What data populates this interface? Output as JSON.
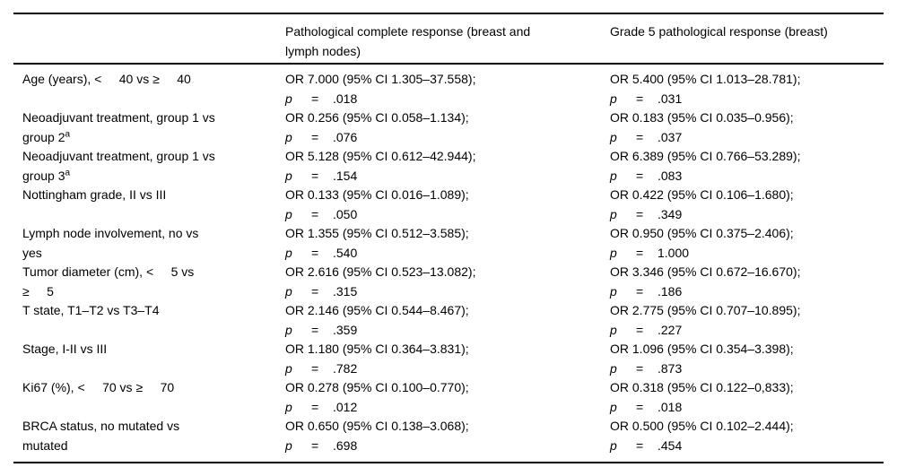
{
  "table": {
    "p_symbol": "p",
    "eq_symbol": "=",
    "columns": [
      {
        "label": ""
      },
      {
        "label": "Pathological complete response (breast and lymph nodes)"
      },
      {
        "label": "Grade 5 pathological response (breast)"
      }
    ],
    "rows": [
      {
        "label_lines": [
          "Age (years), <     40 vs ≥     40"
        ],
        "pcr": {
          "or": "OR 7.000 (95% CI 1.305–37.558);",
          "p": ".018"
        },
        "grade5": {
          "or": "OR 5.400 (95% CI 1.013–28.781);",
          "p": ".031"
        }
      },
      {
        "label_lines": [
          "Neoadjuvant treatment, group 1 vs",
          "group 2^a"
        ],
        "pcr": {
          "or": "OR 0.256 (95% CI 0.058–1.134);",
          "p": ".076"
        },
        "grade5": {
          "or": "OR 0.183 (95% CI 0.035–0.956);",
          "p": ".037"
        }
      },
      {
        "label_lines": [
          "Neoadjuvant treatment, group 1 vs",
          "group 3^a"
        ],
        "pcr": {
          "or": "OR 5.128 (95% CI 0.612–42.944);",
          "p": ".154"
        },
        "grade5": {
          "or": "OR 6.389 (95% CI 0.766–53.289);",
          "p": ".083"
        }
      },
      {
        "label_lines": [
          "Nottingham grade, II vs III"
        ],
        "pcr": {
          "or": "OR 0.133 (95% CI 0.016–1.089);",
          "p": ".050"
        },
        "grade5": {
          "or": "OR 0.422 (95% CI 0.106–1.680);",
          "p": ".349"
        }
      },
      {
        "label_lines": [
          "Lymph node involvement, no vs",
          "yes"
        ],
        "pcr": {
          "or": "OR 1.355 (95% CI 0.512–3.585);",
          "p": ".540"
        },
        "grade5": {
          "or": "OR 0.950 (95% CI 0.375–2.406);",
          "p": "1.000"
        }
      },
      {
        "label_lines": [
          "Tumor diameter (cm), <     5 vs",
          "≥     5"
        ],
        "pcr": {
          "or": "OR 2.616 (95% CI 0.523–13.082);",
          "p": ".315"
        },
        "grade5": {
          "or": "OR 3.346 (95% CI 0.672–16.670);",
          "p": ".186"
        }
      },
      {
        "label_lines": [
          "T state, T1–T2 vs T3–T4"
        ],
        "pcr": {
          "or": "OR 2.146 (95% CI 0.544–8.467);",
          "p": ".359"
        },
        "grade5": {
          "or": "OR 2.775 (95% CI 0.707–10.895);",
          "p": ".227"
        }
      },
      {
        "label_lines": [
          "Stage, I-II vs III"
        ],
        "pcr": {
          "or": "OR 1.180 (95% CI 0.364–3.831);",
          "p": ".782"
        },
        "grade5": {
          "or": "OR 1.096 (95% CI 0.354–3.398);",
          "p": ".873"
        }
      },
      {
        "label_lines": [
          "Ki67 (%), <     70 vs ≥     70"
        ],
        "pcr": {
          "or": "OR 0.278 (95% CI 0.100–0.770);",
          "p": ".012"
        },
        "grade5": {
          "or": "OR 0.318 (95% CI 0.122–0,833);",
          "p": ".018"
        }
      },
      {
        "label_lines": [
          "BRCA status, no mutated vs",
          "mutated"
        ],
        "pcr": {
          "or": "OR 0.650 (95% CI 0.138–3.068);",
          "p": ".698"
        },
        "grade5": {
          "or": "OR 0.500 (95% CI 0.102–2.444);",
          "p": ".454"
        }
      }
    ]
  }
}
